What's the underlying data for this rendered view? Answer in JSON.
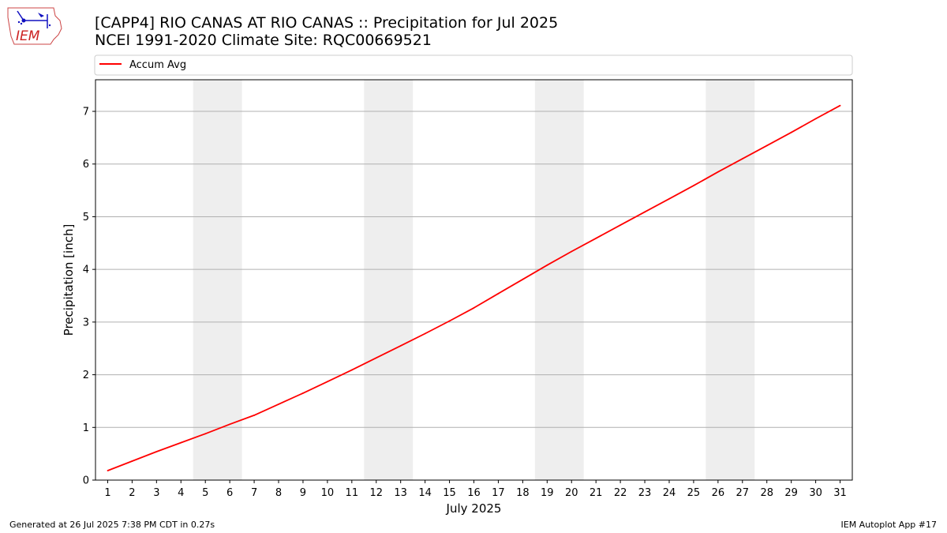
{
  "header": {
    "title_line1": "[CAPP4] RIO CANAS AT RIO CANAS :: Precipitation for Jul 2025",
    "title_line2": "NCEI 1991-2020 Climate Site: RQC00669521"
  },
  "logo": {
    "text": "IEM"
  },
  "footer": {
    "generated": "Generated at 26 Jul 2025 7:38 PM CDT in 0.27s",
    "app": "IEM Autoplot App #17"
  },
  "colors": {
    "line": "#ff0000",
    "weekend": "#eeeeee",
    "grid": "#b0b0b0"
  },
  "chart_data": {
    "type": "line",
    "xlabel": "July 2025",
    "ylabel": "Precipitation [inch]",
    "xlim": [
      0.5,
      31.5
    ],
    "ylim": [
      0,
      7.6
    ],
    "yticks": [
      0,
      1,
      2,
      3,
      4,
      5,
      6,
      7
    ],
    "x": [
      1,
      2,
      3,
      4,
      5,
      6,
      7,
      8,
      9,
      10,
      11,
      12,
      13,
      14,
      15,
      16,
      17,
      18,
      19,
      20,
      21,
      22,
      23,
      24,
      25,
      26,
      27,
      28,
      29,
      30,
      31
    ],
    "grid": "horizontal",
    "legend_position": "top",
    "shaded_days": [
      [
        5,
        6
      ],
      [
        12,
        13
      ],
      [
        19,
        20
      ],
      [
        26,
        27
      ]
    ],
    "series": [
      {
        "name": "Accum Avg",
        "color": "#ff0000",
        "values": [
          0.18,
          0.36,
          0.54,
          0.71,
          0.88,
          1.06,
          1.23,
          1.44,
          1.65,
          1.87,
          2.09,
          2.32,
          2.55,
          2.78,
          3.02,
          3.27,
          3.54,
          3.81,
          4.08,
          4.34,
          4.59,
          4.84,
          5.09,
          5.34,
          5.59,
          5.85,
          6.1,
          6.35,
          6.6,
          6.86,
          7.11
        ]
      }
    ]
  }
}
